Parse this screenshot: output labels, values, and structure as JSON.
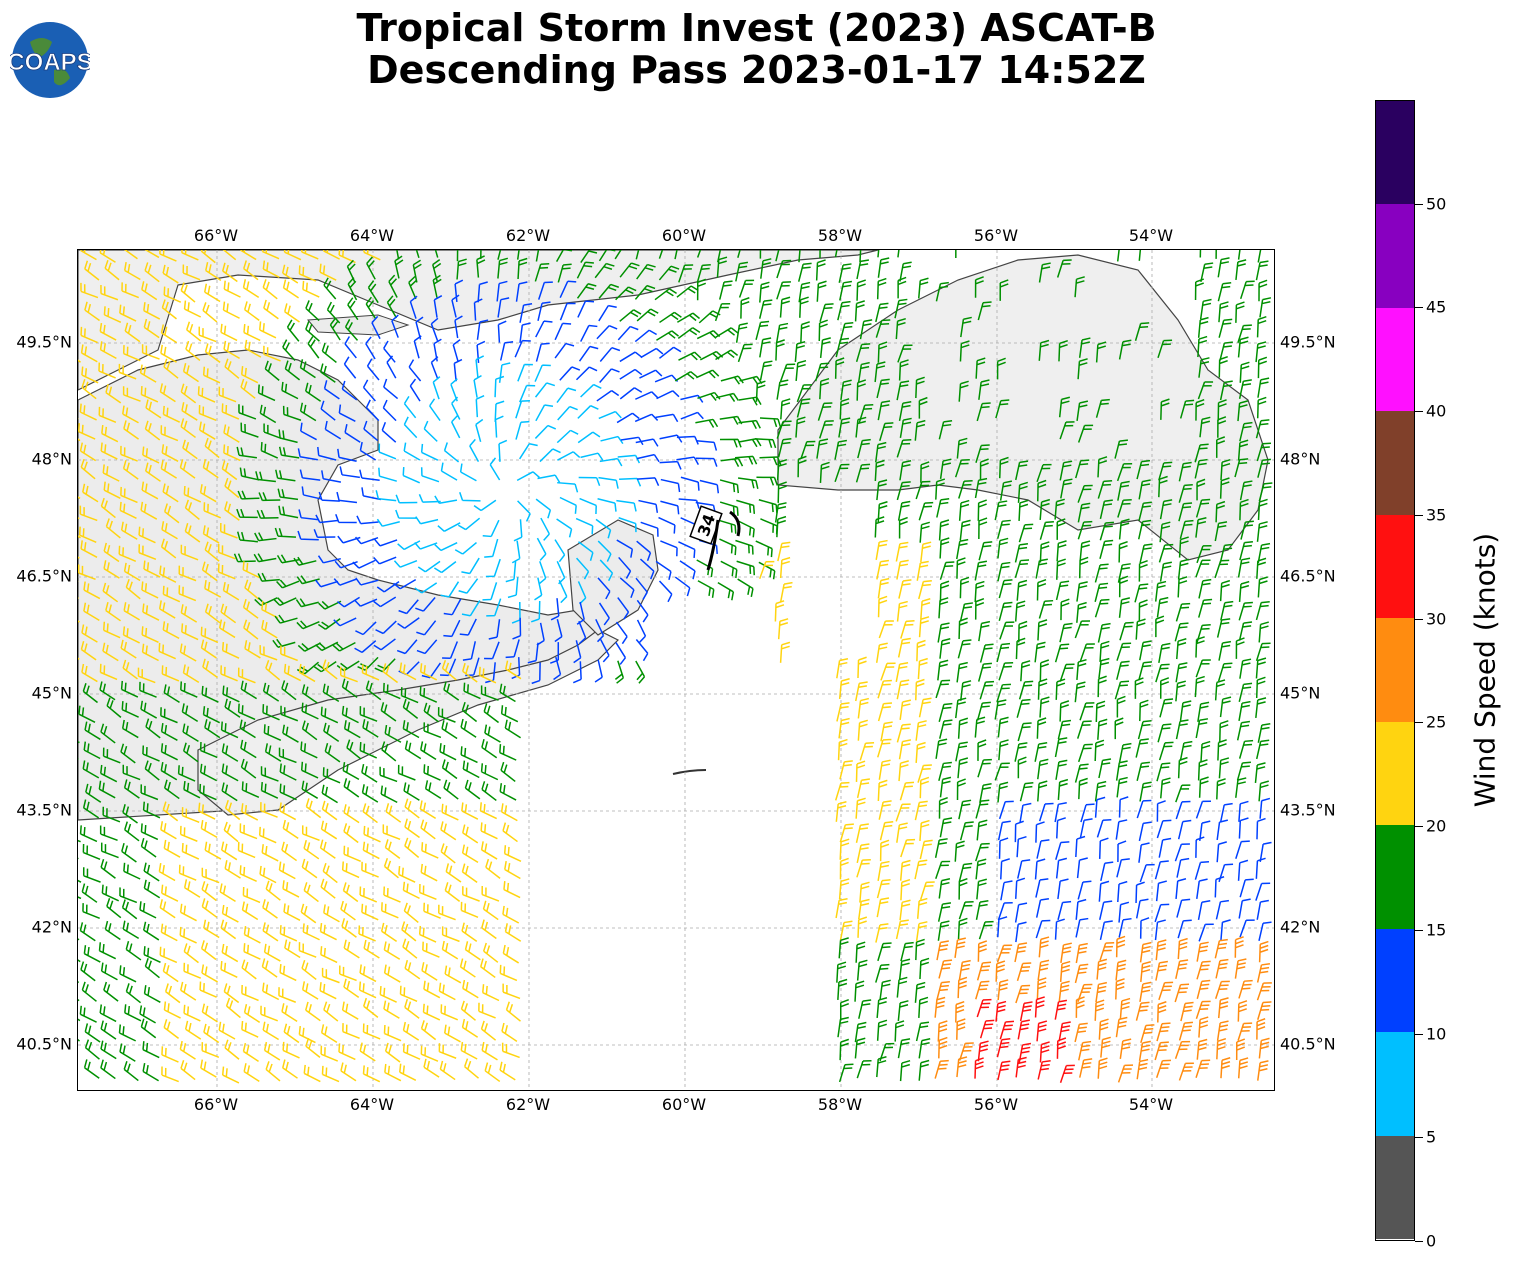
{
  "title": {
    "line1": "Tropical Storm Invest (2023) ASCAT-B",
    "line2": "Descending Pass 2023-01-17 14:52Z"
  },
  "logo": {
    "text": "COAPS"
  },
  "map": {
    "lon_ticks": [
      "66°W",
      "64°W",
      "62°W",
      "60°W",
      "58°W",
      "56°W",
      "54°W"
    ],
    "lat_ticks": [
      "49.5°N",
      "48°N",
      "46.5°N",
      "45°N",
      "43.5°N",
      "42°N",
      "40.5°N"
    ],
    "lon_range": [
      -67.8,
      -52.4
    ],
    "lat_range": [
      39.9,
      50.7
    ],
    "center_label": "34"
  },
  "colorbar": {
    "title": "Wind Speed (knots)",
    "ticks": [
      "0",
      "5",
      "10",
      "15",
      "20",
      "25",
      "30",
      "35",
      "40",
      "45",
      "50"
    ],
    "range": [
      0,
      55
    ],
    "colors": [
      "#555555",
      "#00bfff",
      "#0040ff",
      "#009000",
      "#ffd410",
      "#ff8c10",
      "#ff1010",
      "#80402a",
      "#ff10ff",
      "#8800c0",
      "#2a0060"
    ]
  }
}
